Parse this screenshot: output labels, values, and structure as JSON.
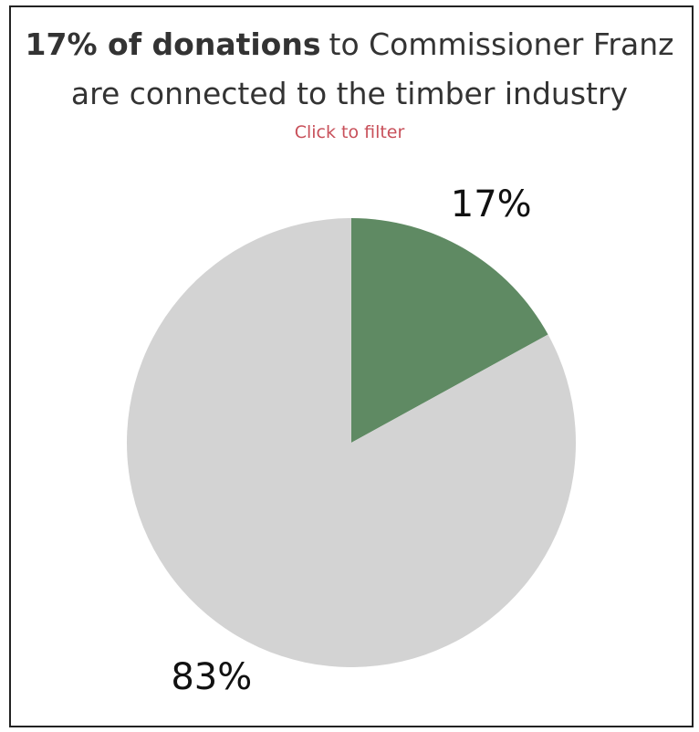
{
  "chart_data": {
    "type": "pie",
    "title": {
      "bold": "17% of donations",
      "lines": [
        "to Commissioner Franz",
        "are connected to the timber industry"
      ]
    },
    "subtitle": "Click to filter",
    "values": [
      17,
      83
    ],
    "value_labels": [
      "17%",
      "83%"
    ],
    "colors": [
      "#5f8a63",
      "#d3d3d3"
    ]
  }
}
